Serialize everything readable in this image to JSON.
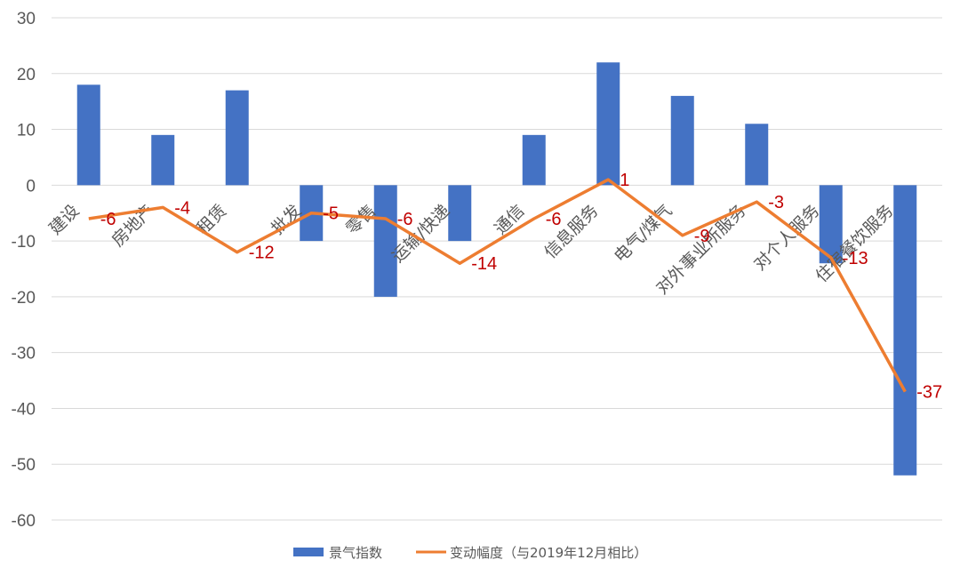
{
  "chart_data": {
    "type": "bar",
    "categories": [
      "建设",
      "房地产",
      "租赁",
      "批发",
      "零售",
      "运输/快递",
      "通信",
      "信息服务",
      "电气/煤气",
      "对外事业所服务",
      "对个人服务",
      "住宿餐饮服务"
    ],
    "series": [
      {
        "name": "景气指数",
        "type": "bar",
        "color": "#4472c4",
        "values": [
          18,
          9,
          17,
          -10,
          -20,
          -10,
          9,
          22,
          16,
          11,
          -14,
          -52
        ]
      },
      {
        "name": "变动幅度（与2019年12月相比）",
        "type": "line",
        "color": "#ed7d31",
        "values": [
          -6,
          -4,
          -12,
          -5,
          -6,
          -14,
          -6,
          1,
          -9,
          -3,
          -13,
          -37
        ]
      }
    ],
    "ylim": [
      -60,
      30
    ],
    "yticks": [
      30,
      20,
      10,
      0,
      -10,
      -20,
      -30,
      -40,
      -50,
      -60
    ],
    "grid": true,
    "legend": "bottom",
    "title": "",
    "xlabel": "",
    "ylabel": ""
  }
}
